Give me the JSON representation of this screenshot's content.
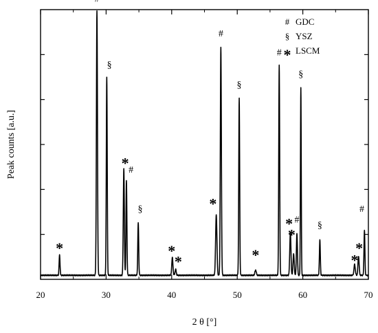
{
  "chart_data": {
    "type": "line",
    "title": "",
    "xlabel": "2 θ [°]",
    "ylabel": "Peak counts [a.u.]",
    "xlim": [
      20,
      70
    ],
    "ylim": [
      0,
      100
    ],
    "x_ticks": [
      "20",
      "30",
      "40",
      "50",
      "60",
      "70"
    ],
    "x_tick_values": [
      20,
      30,
      40,
      50,
      60,
      70
    ],
    "y_tick_values": [
      16.67,
      33.33,
      50,
      66.67,
      83.33
    ],
    "grid": false,
    "legend_position": "top-right",
    "legend": [
      {
        "symbol": "#",
        "label": "GDC"
      },
      {
        "symbol": "§",
        "label": "YSZ"
      },
      {
        "symbol": "*",
        "label": "LSCM"
      }
    ],
    "baseline": 1.5,
    "peaks": [
      {
        "x": 22.9,
        "height": 7.5,
        "width": 0.07
      },
      {
        "x": 28.6,
        "height": 98.0,
        "width": 0.08
      },
      {
        "x": 30.1,
        "height": 73.5,
        "width": 0.07
      },
      {
        "x": 32.7,
        "height": 39.5,
        "width": 0.08
      },
      {
        "x": 33.1,
        "height": 35.0,
        "width": 0.07
      },
      {
        "x": 34.9,
        "height": 19.5,
        "width": 0.07
      },
      {
        "x": 40.1,
        "height": 6.5,
        "width": 0.09
      },
      {
        "x": 40.6,
        "height": 2.2,
        "width": 0.09
      },
      {
        "x": 46.8,
        "height": 22.5,
        "width": 0.1
      },
      {
        "x": 47.5,
        "height": 84.5,
        "width": 0.08
      },
      {
        "x": 50.3,
        "height": 65.5,
        "width": 0.07
      },
      {
        "x": 52.8,
        "height": 2.0,
        "width": 0.1
      },
      {
        "x": 56.4,
        "height": 78.0,
        "width": 0.07
      },
      {
        "x": 58.1,
        "height": 16.0,
        "width": 0.09
      },
      {
        "x": 58.6,
        "height": 8.0,
        "width": 0.09
      },
      {
        "x": 59.1,
        "height": 15.5,
        "width": 0.08
      },
      {
        "x": 59.7,
        "height": 69.5,
        "width": 0.06
      },
      {
        "x": 62.6,
        "height": 13.0,
        "width": 0.07
      },
      {
        "x": 67.9,
        "height": 4.0,
        "width": 0.1
      },
      {
        "x": 68.5,
        "height": 7.0,
        "width": 0.09
      },
      {
        "x": 69.4,
        "height": 16.5,
        "width": 0.07
      }
    ],
    "annotations": [
      {
        "symbol": "*",
        "x": 22.9,
        "y": 12.5
      },
      {
        "symbol": "#",
        "x": 28.6,
        "y": 103.0
      },
      {
        "symbol": "§",
        "x": 30.5,
        "y": 78.5
      },
      {
        "symbol": "*",
        "x": 32.9,
        "y": 44.0
      },
      {
        "symbol": "#",
        "x": 33.8,
        "y": 39.5
      },
      {
        "symbol": "§",
        "x": 35.2,
        "y": 25.0
      },
      {
        "symbol": "*",
        "x": 40.0,
        "y": 11.5
      },
      {
        "symbol": "*",
        "x": 41.0,
        "y": 7.5
      },
      {
        "symbol": "*",
        "x": 46.3,
        "y": 29.0
      },
      {
        "symbol": "#",
        "x": 47.5,
        "y": 90.0
      },
      {
        "symbol": "§",
        "x": 50.3,
        "y": 71.0
      },
      {
        "symbol": "*",
        "x": 52.8,
        "y": 10.0
      },
      {
        "symbol": "#",
        "x": 56.4,
        "y": 83.0
      },
      {
        "symbol": "*",
        "x": 57.9,
        "y": 21.5
      },
      {
        "symbol": "*",
        "x": 58.3,
        "y": 17.5
      },
      {
        "symbol": "#",
        "x": 59.1,
        "y": 21.0
      },
      {
        "symbol": "§",
        "x": 59.7,
        "y": 75.0
      },
      {
        "symbol": "§",
        "x": 62.6,
        "y": 19.0
      },
      {
        "symbol": "*",
        "x": 67.9,
        "y": 8.0
      },
      {
        "symbol": "*",
        "x": 68.6,
        "y": 12.5
      },
      {
        "symbol": "#",
        "x": 69.0,
        "y": 25.0
      }
    ]
  }
}
